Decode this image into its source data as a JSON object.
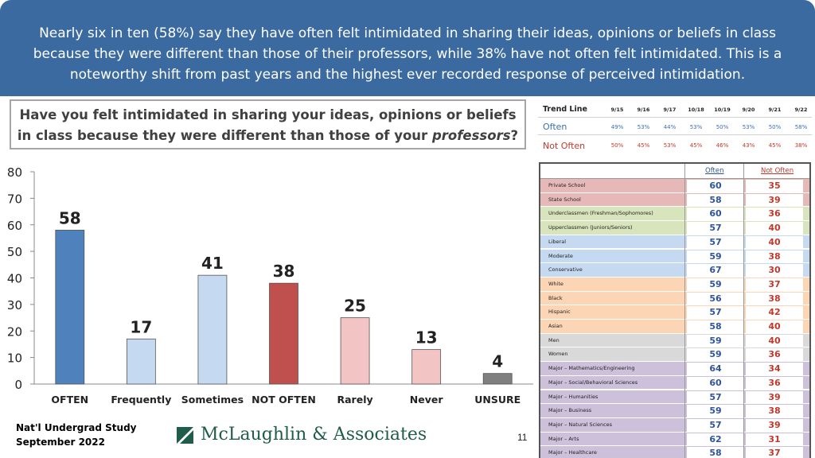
{
  "header": {
    "text": "Nearly six in ten (58%) say they have often felt intimidated in sharing their ideas, opinions or beliefs in class because they were different than those of their professors, while 38% have not often felt intimidated. This is a noteworthy shift from past years and the highest ever recorded response of perceived intimidation."
  },
  "question": {
    "part1": "Have you felt intimidated in sharing your ideas, opinions or beliefs in class because they were different than those of your ",
    "italic": "professors",
    "part2": "?"
  },
  "trend": {
    "title": "Trend Line",
    "dates": [
      "9/15",
      "9/16",
      "9/17",
      "10/18",
      "10/19",
      "9/20",
      "9/21",
      "9/22"
    ],
    "often_label": "Often",
    "often": [
      "49%",
      "53%",
      "44%",
      "53%",
      "50%",
      "53%",
      "50%",
      "58%"
    ],
    "not_often_label": "Not Often",
    "not_often": [
      "50%",
      "45%",
      "53%",
      "45%",
      "46%",
      "43%",
      "45%",
      "38%"
    ]
  },
  "chart_data": {
    "type": "bar",
    "categories": [
      "OFTEN",
      "Frequently",
      "Sometimes",
      "NOT OFTEN",
      "Rarely",
      "Never",
      "UNSURE"
    ],
    "values": [
      58,
      17,
      41,
      38,
      25,
      13,
      4
    ],
    "ylim": [
      0,
      80
    ],
    "yticks": [
      0,
      10,
      20,
      30,
      40,
      50,
      60,
      70,
      80
    ],
    "grid": false,
    "colors": {
      "often": "#4f81bd",
      "frequently": "#c5d9f1",
      "sometimes": "#c5d9f1",
      "not_often": "#c0504d",
      "rarely": "#f2c4c4",
      "never": "#f2c4c4",
      "unsure": "#7f7f7f"
    }
  },
  "demographics": {
    "col_often": "Often",
    "col_not_often": "Not Often",
    "rows": [
      {
        "label": "Private School",
        "often": "60",
        "not_often": "35",
        "color": "#e6b9b8"
      },
      {
        "label": "State School",
        "often": "58",
        "not_often": "39",
        "color": "#e6b9b8"
      },
      {
        "label": "Underclassmen (Freshman/Sophomores)",
        "often": "60",
        "not_often": "36",
        "color": "#d8e4bc"
      },
      {
        "label": "Upperclassmen (Juniors/Seniors)",
        "often": "57",
        "not_often": "40",
        "color": "#d8e4bc"
      },
      {
        "label": "Liberal",
        "often": "57",
        "not_often": "40",
        "color": "#c5d9f1"
      },
      {
        "label": "Moderate",
        "often": "59",
        "not_often": "38",
        "color": "#c5d9f1"
      },
      {
        "label": "Conservative",
        "often": "67",
        "not_often": "30",
        "color": "#c5d9f1"
      },
      {
        "label": "White",
        "often": "59",
        "not_often": "37",
        "color": "#fcd5b4"
      },
      {
        "label": "Black",
        "often": "56",
        "not_often": "38",
        "color": "#fcd5b4"
      },
      {
        "label": "Hispanic",
        "often": "57",
        "not_often": "42",
        "color": "#fcd5b4"
      },
      {
        "label": "Asian",
        "often": "58",
        "not_often": "40",
        "color": "#fcd5b4"
      },
      {
        "label": "Men",
        "often": "59",
        "not_often": "40",
        "color": "#d9d9d9"
      },
      {
        "label": "Women",
        "often": "59",
        "not_often": "36",
        "color": "#d9d9d9"
      },
      {
        "label": "Major – Mathematics/Engineering",
        "often": "64",
        "not_often": "34",
        "color": "#ccc0da"
      },
      {
        "label": "Major – Social/Behavioral Sciences",
        "often": "60",
        "not_often": "36",
        "color": "#ccc0da"
      },
      {
        "label": "Major – Humanities",
        "often": "57",
        "not_often": "39",
        "color": "#ccc0da"
      },
      {
        "label": "Major – Business",
        "often": "59",
        "not_often": "38",
        "color": "#ccc0da"
      },
      {
        "label": "Major – Natural Sciences",
        "often": "57",
        "not_often": "39",
        "color": "#ccc0da"
      },
      {
        "label": "Major – Arts",
        "often": "62",
        "not_often": "31",
        "color": "#ccc0da"
      },
      {
        "label": "Major – Healthcare",
        "often": "58",
        "not_often": "37",
        "color": "#ccc0da"
      }
    ]
  },
  "footer": {
    "line1": "Nat'l Undergrad Study",
    "line2": "September 2022",
    "logo_text": "McLaughlin & Associates",
    "page_number": "11"
  }
}
